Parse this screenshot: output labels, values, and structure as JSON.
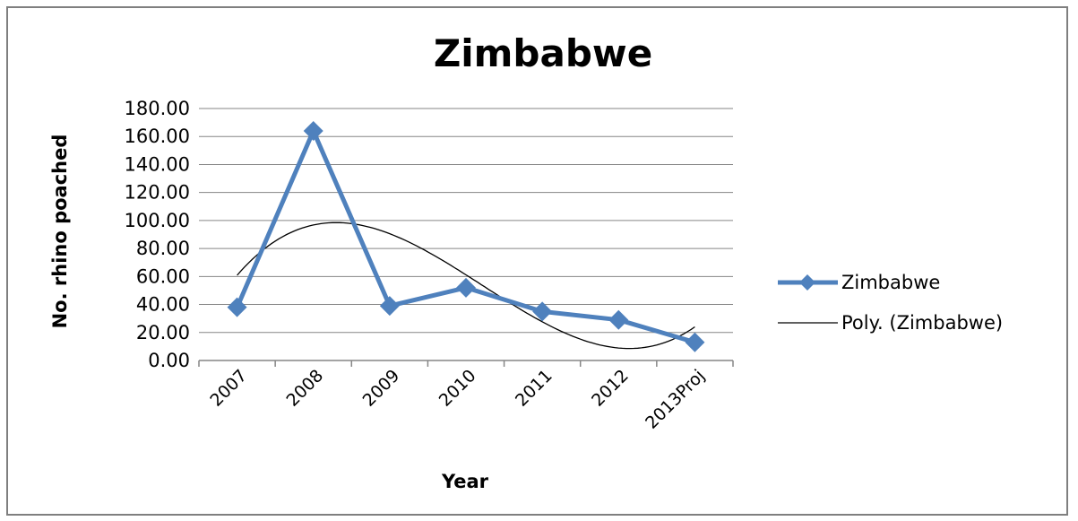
{
  "chart_data": {
    "type": "line",
    "title": "Zimbabwe",
    "xlabel": "Year",
    "ylabel": "No. rhino poached",
    "categories": [
      "2007",
      "2008",
      "2009",
      "2010",
      "2011",
      "2012",
      "2013Proj"
    ],
    "series": [
      {
        "name": "Zimbabwe",
        "values": [
          38,
          164,
          39,
          52,
          35,
          29,
          13
        ],
        "color": "#4f81bd",
        "marker": "diamond"
      }
    ],
    "trendline": {
      "name": "Poly. (Zimbabwe)",
      "type": "polynomial",
      "color": "#000000"
    },
    "ylim": [
      0,
      180
    ],
    "yticks": [
      "0.00",
      "20.00",
      "40.00",
      "60.00",
      "80.00",
      "100.00",
      "120.00",
      "140.00",
      "160.00",
      "180.00"
    ],
    "grid": true,
    "legend_position": "right"
  }
}
